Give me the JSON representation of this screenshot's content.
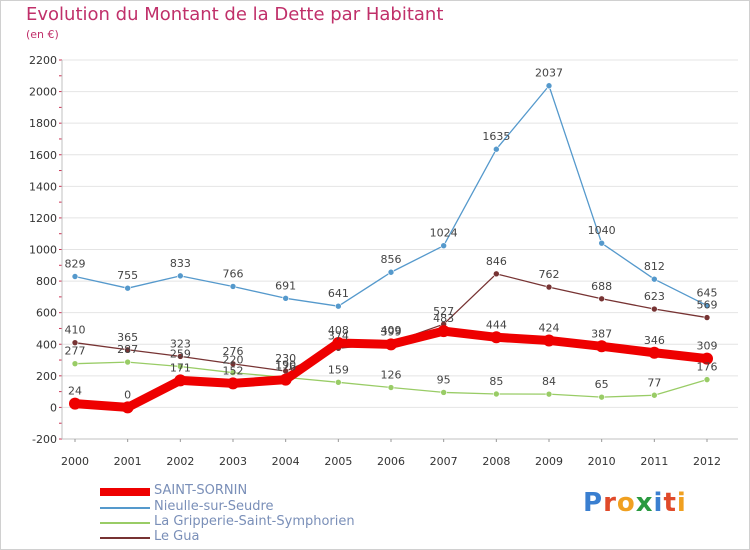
{
  "header": {
    "title": "Evolution du Montant de la Dette par Habitant",
    "subtitle": "(en €)"
  },
  "logo": {
    "text": "Proxiti"
  },
  "chart_data": {
    "type": "line",
    "title": "Evolution du Montant de la Dette par Habitant",
    "subtitle": "(en €)",
    "xlabel": "",
    "ylabel": "",
    "ylim": [
      -200,
      2200
    ],
    "yticks": [
      "-200",
      "0",
      "200",
      "400",
      "600",
      "800",
      "1000",
      "1200",
      "1400",
      "1600",
      "1800",
      "2000",
      "2200"
    ],
    "categories": [
      "2000",
      "2001",
      "2002",
      "2003",
      "2004",
      "2005",
      "2006",
      "2007",
      "2008",
      "2009",
      "2010",
      "2011",
      "2012"
    ],
    "grid": true,
    "legend_position": "bottom-left",
    "series": [
      {
        "name": "SAINT-SORNIN",
        "color": "#ee0000",
        "emphasis": true,
        "values": [
          24,
          0,
          171,
          152,
          176,
          408,
          399,
          483,
          444,
          424,
          387,
          346,
          309
        ],
        "labels": [
          "24",
          "0",
          "171",
          "152",
          "176",
          "408",
          "399",
          "483",
          "444",
          "424",
          "387",
          "346",
          "309"
        ]
      },
      {
        "name": "Nieulle-sur-Seudre",
        "color": "#5599cc",
        "values": [
          829,
          755,
          833,
          766,
          691,
          641,
          856,
          1024,
          1635,
          2037,
          1040,
          812,
          645
        ],
        "labels": [
          "829",
          "755",
          "833",
          "766",
          "691",
          "641",
          "856",
          "1024",
          "1635",
          "2037",
          "1040",
          "812",
          "645"
        ]
      },
      {
        "name": "La Gripperie-Saint-Symphorien",
        "color": "#99cc66",
        "values": [
          277,
          287,
          259,
          220,
          190,
          159,
          126,
          95,
          85,
          84,
          65,
          77,
          176
        ],
        "labels": [
          "277",
          "287",
          "259",
          "220",
          "190",
          "159",
          "126",
          "95",
          "85",
          "84",
          "65",
          "77",
          "176"
        ]
      },
      {
        "name": "Le Gua",
        "color": "#773333",
        "values": [
          410,
          365,
          323,
          276,
          230,
          374,
          409,
          527,
          846,
          762,
          688,
          623,
          569
        ],
        "labels": [
          "410",
          "365",
          "323",
          "276",
          "230",
          "374",
          "409",
          "527",
          "846",
          "762",
          "688",
          "623",
          "569"
        ]
      }
    ]
  }
}
